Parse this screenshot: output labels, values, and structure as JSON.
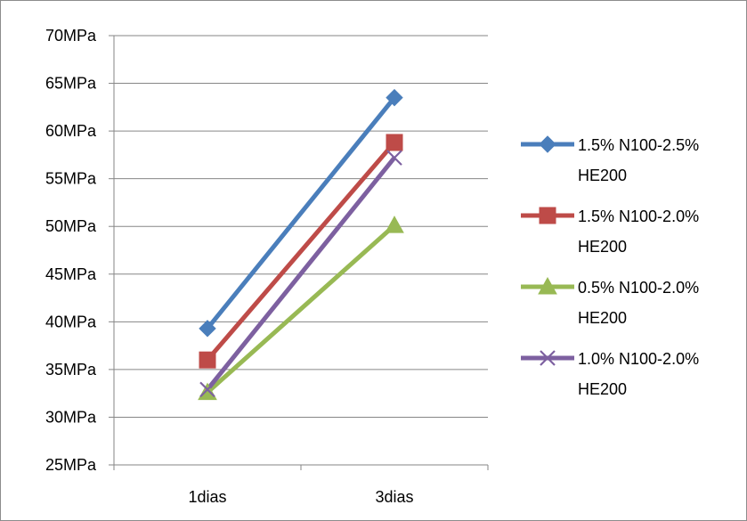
{
  "chart_data": {
    "type": "line",
    "categories": [
      "1dias",
      "3dias"
    ],
    "ylim": [
      25,
      70
    ],
    "y_ticks": [
      {
        "value": 70,
        "label": "70MPa"
      },
      {
        "value": 65,
        "label": "65MPa"
      },
      {
        "value": 60,
        "label": "60MPa"
      },
      {
        "value": 55,
        "label": "55MPa"
      },
      {
        "value": 50,
        "label": "50MPa"
      },
      {
        "value": 45,
        "label": "45MPa"
      },
      {
        "value": 40,
        "label": "40MPa"
      },
      {
        "value": 35,
        "label": "35MPa"
      },
      {
        "value": 30,
        "label": "30MPa"
      },
      {
        "value": 25,
        "label": "25MPa"
      }
    ],
    "grid": true,
    "legend_position": "right",
    "series": [
      {
        "name": "1.5% N100-2.5% HE200",
        "name_lines": [
          "1.5% N100-2.5%",
          "HE200"
        ],
        "values": [
          39.3,
          63.5
        ],
        "color": "#4a7ebb",
        "marker": "diamond"
      },
      {
        "name": "1.5% N100-2.0% HE200",
        "name_lines": [
          "1.5% N100-2.0%",
          "HE200"
        ],
        "values": [
          36.0,
          58.8
        ],
        "color": "#be4b48",
        "marker": "square"
      },
      {
        "name": "0.5% N100-2.0% HE200",
        "name_lines": [
          "0.5% N100-2.0%",
          "HE200"
        ],
        "values": [
          32.6,
          50.1
        ],
        "color": "#98b954",
        "marker": "triangle"
      },
      {
        "name": "1.0% N100-2.0% HE200",
        "name_lines": [
          "1.0% N100-2.0%",
          "HE200"
        ],
        "values": [
          32.9,
          57.2
        ],
        "color": "#7d60a0",
        "marker": "x"
      }
    ]
  }
}
